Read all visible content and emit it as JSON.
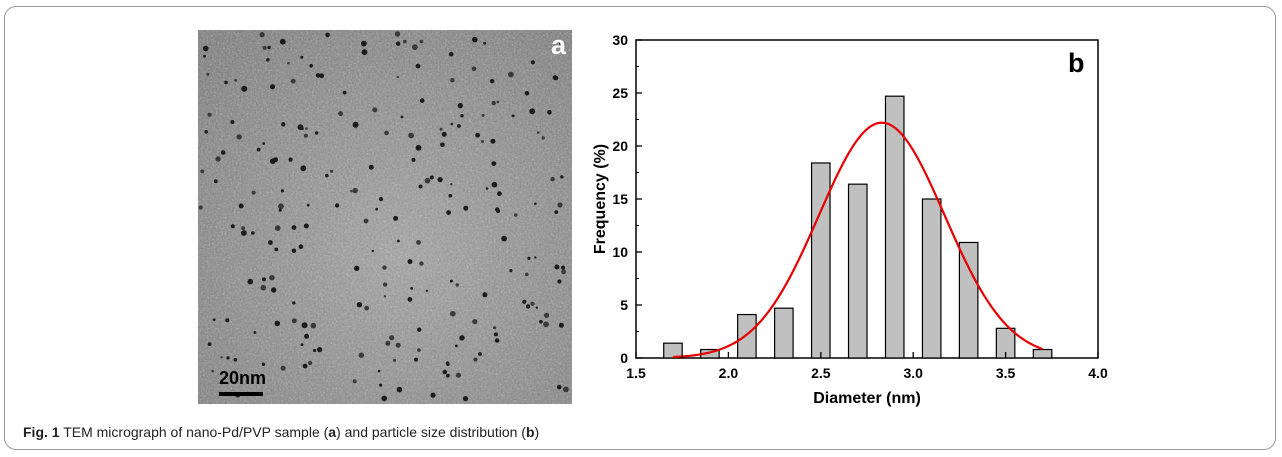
{
  "panel_a": {
    "label": "a",
    "scale_bar_label": "20nm"
  },
  "caption": {
    "figure_label": "Fig. 1",
    "text_1": " TEM micrograph of nano-Pd/PVP sample (",
    "ref_a": "a",
    "text_2": ") and particle size distribution (",
    "ref_b": "b",
    "text_3": ")"
  },
  "chart_data": {
    "type": "bar",
    "panel_label": "b",
    "xlabel": "Diameter (nm)",
    "ylabel": "Frequency (%)",
    "xlim": [
      1.5,
      4.0
    ],
    "ylim": [
      0,
      30
    ],
    "x_ticks": [
      1.5,
      2.0,
      2.5,
      3.0,
      3.5,
      4.0
    ],
    "x_tick_labels": [
      "1.5",
      "2.0",
      "2.5",
      "3.0",
      "3.5",
      "4.0"
    ],
    "y_ticks": [
      0,
      5,
      10,
      15,
      20,
      25,
      30
    ],
    "y_tick_labels": [
      "0",
      "5",
      "10",
      "15",
      "20",
      "25",
      "30"
    ],
    "bin_width": 0.1,
    "bars": [
      {
        "x": 1.7,
        "value": 1.4
      },
      {
        "x": 1.9,
        "value": 0.8
      },
      {
        "x": 2.1,
        "value": 4.1
      },
      {
        "x": 2.3,
        "value": 4.7
      },
      {
        "x": 2.5,
        "value": 18.4
      },
      {
        "x": 2.7,
        "value": 16.4
      },
      {
        "x": 2.9,
        "value": 24.7
      },
      {
        "x": 3.1,
        "value": 15.0
      },
      {
        "x": 3.3,
        "value": 10.9
      },
      {
        "x": 3.5,
        "value": 2.8
      },
      {
        "x": 3.7,
        "value": 0.8
      }
    ],
    "fit_curve": {
      "shape": "gaussian",
      "x_range": [
        1.7,
        3.7
      ],
      "center": 2.83,
      "amplitude": 22.2,
      "sigma": 0.34
    },
    "bar_color": "#c0c0c0",
    "bar_edge_color": "#000000",
    "curve_color": "#e80000",
    "grid": false,
    "legend": "none"
  }
}
